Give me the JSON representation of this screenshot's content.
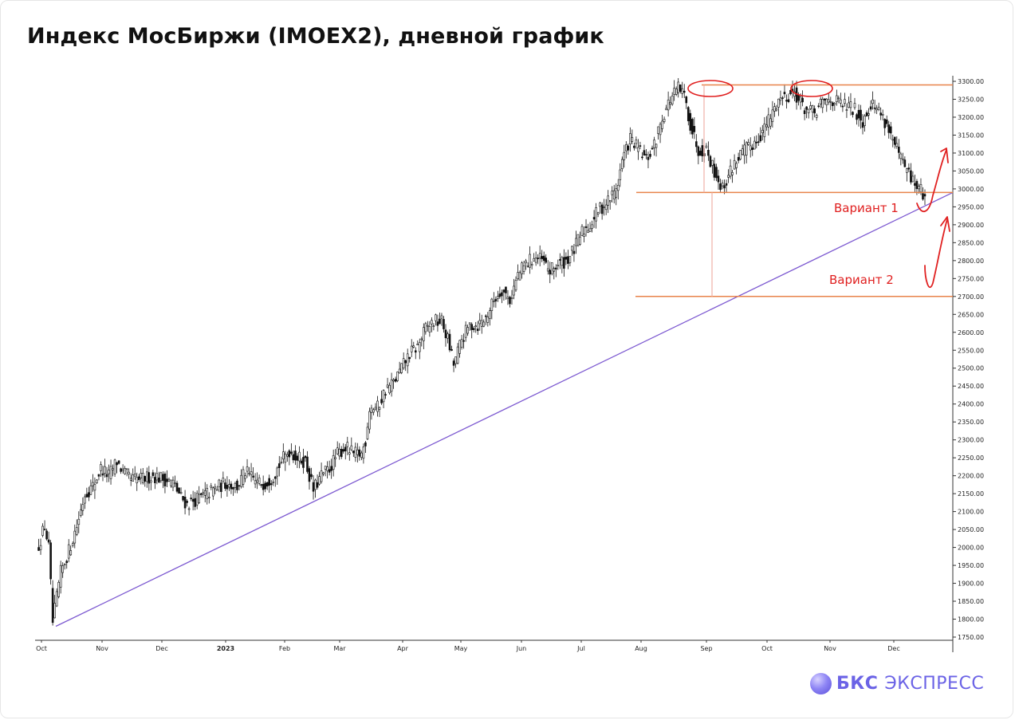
{
  "header": {
    "title": "Индекс МосБиржи (IMOEX2), дневной график"
  },
  "brand": {
    "bks": "БКС",
    "express": "ЭКСПРЕСС",
    "color": "#6b63e6"
  },
  "colors": {
    "resistance": "#e8834a",
    "trend": "#7d5ad1",
    "annotation_red": "#e02020",
    "candle": "#111111",
    "measure": "#f0b0a8"
  },
  "chart_data": {
    "type": "candlestick",
    "title": "Индекс МосБиржи (IMOEX2), дневной график",
    "ylim": [
      1750,
      3300
    ],
    "y_ticks": [
      "3300.00",
      "3250.00",
      "3200.00",
      "3150.00",
      "3100.00",
      "3050.00",
      "3000.00",
      "2950.00",
      "2900.00",
      "2850.00",
      "2800.00",
      "2750.00",
      "2700.00",
      "2650.00",
      "2600.00",
      "2550.00",
      "2500.00",
      "2450.00",
      "2400.00",
      "2350.00",
      "2300.00",
      "2250.00",
      "2200.00",
      "2150.00",
      "2100.00",
      "2050.00",
      "2000.00",
      "1950.00",
      "1900.00",
      "1850.00",
      "1800.00",
      "1750.00"
    ],
    "x_labels": [
      "Oct",
      "Nov",
      "Dec",
      "2023",
      "Feb",
      "Mar",
      "Apr",
      "May",
      "Jun",
      "Jul",
      "Aug",
      "Sep",
      "Oct",
      "Nov",
      "Dec"
    ],
    "grid": false,
    "close_path": [
      [
        0,
        1990
      ],
      [
        4,
        2060
      ],
      [
        6,
        2000
      ],
      [
        8,
        1790
      ],
      [
        12,
        1930
      ],
      [
        16,
        1990
      ],
      [
        20,
        2060
      ],
      [
        24,
        2150
      ],
      [
        28,
        2170
      ],
      [
        32,
        2220
      ],
      [
        36,
        2200
      ],
      [
        40,
        2240
      ],
      [
        43,
        2210
      ],
      [
        47,
        2190
      ],
      [
        52,
        2190
      ],
      [
        58,
        2200
      ],
      [
        64,
        2190
      ],
      [
        68,
        2180
      ],
      [
        72,
        2140
      ],
      [
        75,
        2120
      ],
      [
        78,
        2130
      ],
      [
        82,
        2140
      ],
      [
        88,
        2160
      ],
      [
        94,
        2180
      ],
      [
        100,
        2170
      ],
      [
        104,
        2210
      ],
      [
        110,
        2180
      ],
      [
        114,
        2180
      ],
      [
        118,
        2200
      ],
      [
        122,
        2240
      ],
      [
        126,
        2270
      ],
      [
        130,
        2250
      ],
      [
        134,
        2240
      ],
      [
        138,
        2160
      ],
      [
        142,
        2200
      ],
      [
        146,
        2220
      ],
      [
        150,
        2260
      ],
      [
        154,
        2280
      ],
      [
        158,
        2260
      ],
      [
        162,
        2260
      ],
      [
        164,
        2300
      ],
      [
        166,
        2390
      ],
      [
        170,
        2390
      ],
      [
        174,
        2440
      ],
      [
        178,
        2460
      ],
      [
        182,
        2500
      ],
      [
        186,
        2540
      ],
      [
        190,
        2560
      ],
      [
        194,
        2610
      ],
      [
        198,
        2630
      ],
      [
        202,
        2630
      ],
      [
        205,
        2580
      ],
      [
        208,
        2510
      ],
      [
        212,
        2580
      ],
      [
        216,
        2620
      ],
      [
        220,
        2620
      ],
      [
        224,
        2640
      ],
      [
        228,
        2690
      ],
      [
        232,
        2720
      ],
      [
        236,
        2690
      ],
      [
        240,
        2760
      ],
      [
        244,
        2790
      ],
      [
        248,
        2810
      ],
      [
        252,
        2800
      ],
      [
        256,
        2770
      ],
      [
        260,
        2790
      ],
      [
        264,
        2800
      ],
      [
        268,
        2830
      ],
      [
        272,
        2880
      ],
      [
        276,
        2900
      ],
      [
        280,
        2940
      ],
      [
        284,
        2960
      ],
      [
        288,
        2990
      ],
      [
        290,
        3020
      ],
      [
        292,
        3080
      ],
      [
        296,
        3140
      ],
      [
        300,
        3110
      ],
      [
        304,
        3080
      ],
      [
        308,
        3120
      ],
      [
        312,
        3200
      ],
      [
        316,
        3250
      ],
      [
        320,
        3280
      ],
      [
        323,
        3260
      ],
      [
        326,
        3180
      ],
      [
        330,
        3110
      ],
      [
        334,
        3110
      ],
      [
        338,
        3050
      ],
      [
        342,
        3000
      ],
      [
        346,
        3050
      ],
      [
        350,
        3090
      ],
      [
        354,
        3110
      ],
      [
        358,
        3130
      ],
      [
        362,
        3160
      ],
      [
        366,
        3200
      ],
      [
        370,
        3250
      ],
      [
        374,
        3260
      ],
      [
        378,
        3270
      ],
      [
        381,
        3240
      ],
      [
        384,
        3220
      ],
      [
        388,
        3210
      ],
      [
        392,
        3240
      ],
      [
        396,
        3250
      ],
      [
        400,
        3240
      ],
      [
        404,
        3230
      ],
      [
        408,
        3220
      ],
      [
        412,
        3190
      ],
      [
        416,
        3240
      ],
      [
        420,
        3220
      ],
      [
        424,
        3180
      ],
      [
        428,
        3120
      ],
      [
        432,
        3070
      ],
      [
        436,
        3030
      ],
      [
        440,
        3000
      ],
      [
        443,
        2980
      ]
    ],
    "annotations": {
      "resistance_level": 3290,
      "neckline_level": 2990,
      "target_level": 2700,
      "trendline": {
        "start": [
          "Oct",
          1780
        ],
        "end": [
          "Dec",
          2990
        ]
      },
      "top_markers": 2,
      "labels": [
        "Вариант 1",
        "Вариант 2"
      ]
    }
  }
}
